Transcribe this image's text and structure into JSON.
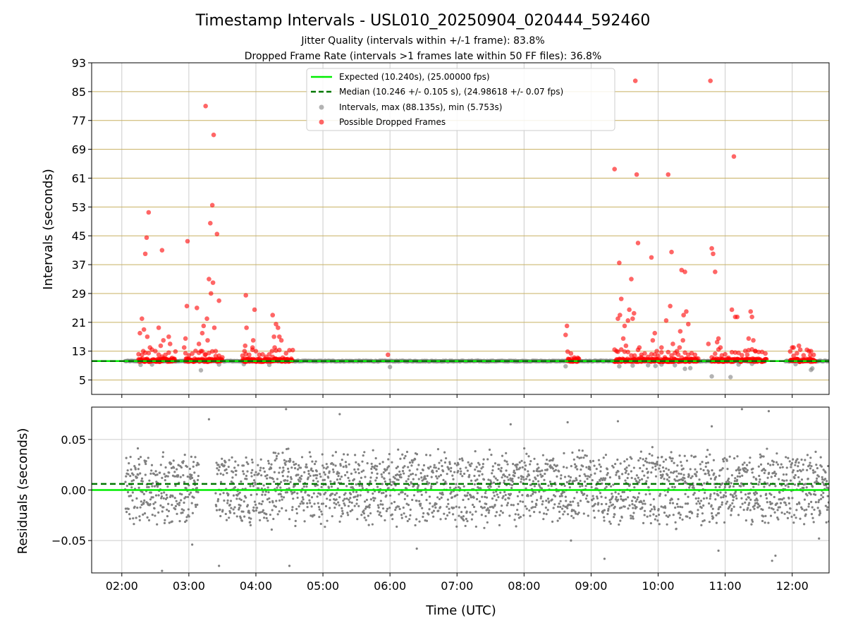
{
  "title": "Timestamp Intervals - USL010_20250904_020444_592460",
  "subtitle_lines": [
    "Jitter Quality (intervals within +/-1 frame): 83.8%",
    "Dropped Frame Rate (intervals >1 frames late within 50 FF files): 36.8%"
  ],
  "colors": {
    "expected": "#00ee00",
    "median": "#007700",
    "intervals": "#808080",
    "dropped": "#ff0000",
    "hgrid_top": "#c8b060",
    "grid": "#cccccc"
  },
  "chart_data": [
    {
      "type": "scatter",
      "panel": "intervals",
      "ylabel": "Intervals (seconds)",
      "ylim": [
        1,
        93
      ],
      "yticks": [
        "5",
        "13",
        "21",
        "29",
        "37",
        "45",
        "53",
        "61",
        "69",
        "77",
        "85",
        "93"
      ],
      "xlim_hours": [
        1.55,
        12.55
      ],
      "legend_placement": "upper-center",
      "legend": [
        "Expected (10.240s), (25.00000 fps)",
        "Median (10.246 +/- 0.105 s), (24.98618 +/- 0.07 fps)",
        "Intervals, max (88.135s), min (5.753s)",
        "Possible Dropped Frames"
      ],
      "expected_value": 10.24,
      "median_value": 10.246,
      "interval_segments_hours": [
        [
          2.05,
          4.5
        ],
        [
          4.5,
          8.8
        ],
        [
          8.8,
          11.6
        ],
        [
          11.9,
          12.55
        ]
      ],
      "gray_outliers": [
        [
          2.28,
          9.2
        ],
        [
          2.45,
          9.3
        ],
        [
          3.18,
          7.7
        ],
        [
          3.45,
          9.3
        ],
        [
          3.82,
          9.4
        ],
        [
          4.2,
          9.2
        ],
        [
          6.0,
          8.6
        ],
        [
          8.62,
          8.8
        ],
        [
          9.42,
          8.8
        ],
        [
          9.62,
          9.0
        ],
        [
          9.85,
          9.1
        ],
        [
          9.96,
          8.9
        ],
        [
          10.05,
          9.3
        ],
        [
          10.25,
          9.1
        ],
        [
          10.4,
          8.1
        ],
        [
          10.48,
          8.3
        ],
        [
          10.8,
          6.0
        ],
        [
          11.08,
          5.8
        ],
        [
          11.2,
          9.3
        ],
        [
          11.4,
          9.5
        ],
        [
          12.05,
          9.4
        ],
        [
          12.28,
          7.8
        ],
        [
          12.3,
          8.2
        ]
      ],
      "dropped_frames": [
        [
          2.3,
          22
        ],
        [
          2.33,
          19
        ],
        [
          2.27,
          18
        ],
        [
          2.35,
          40
        ],
        [
          2.37,
          44.5
        ],
        [
          2.4,
          51.5
        ],
        [
          2.42,
          14
        ],
        [
          2.38,
          17
        ],
        [
          2.32,
          13
        ],
        [
          2.55,
          19.5
        ],
        [
          2.58,
          14.5
        ],
        [
          2.6,
          41
        ],
        [
          2.62,
          16
        ],
        [
          2.7,
          17
        ],
        [
          2.72,
          15
        ],
        [
          2.98,
          43.5
        ],
        [
          2.97,
          25.5
        ],
        [
          2.95,
          16.5
        ],
        [
          2.93,
          14
        ],
        [
          3.12,
          25
        ],
        [
          3.15,
          15
        ],
        [
          3.2,
          18
        ],
        [
          3.22,
          20
        ],
        [
          3.25,
          81
        ],
        [
          3.27,
          22
        ],
        [
          3.28,
          16
        ],
        [
          3.3,
          33
        ],
        [
          3.32,
          48.5
        ],
        [
          3.33,
          29
        ],
        [
          3.35,
          53.5
        ],
        [
          3.36,
          32
        ],
        [
          3.37,
          73
        ],
        [
          3.38,
          19.5
        ],
        [
          3.4,
          13
        ],
        [
          3.42,
          45.5
        ],
        [
          3.45,
          27
        ],
        [
          3.18,
          13
        ],
        [
          3.24,
          12
        ],
        [
          3.85,
          28.5
        ],
        [
          3.86,
          19.5
        ],
        [
          3.84,
          14.5
        ],
        [
          3.83,
          13
        ],
        [
          3.98,
          24.5
        ],
        [
          3.96,
          16
        ],
        [
          3.95,
          14
        ],
        [
          4.25,
          23
        ],
        [
          4.27,
          17
        ],
        [
          4.3,
          20.5
        ],
        [
          4.33,
          19.5
        ],
        [
          4.35,
          17
        ],
        [
          4.38,
          16
        ],
        [
          4.28,
          14
        ],
        [
          4.24,
          13
        ],
        [
          5.97,
          12
        ],
        [
          8.62,
          17.5
        ],
        [
          8.64,
          20
        ],
        [
          9.35,
          63.5
        ],
        [
          9.38,
          13
        ],
        [
          9.4,
          22
        ],
        [
          9.42,
          37.5
        ],
        [
          9.45,
          27.5
        ],
        [
          9.43,
          23
        ],
        [
          9.48,
          16.5
        ],
        [
          9.5,
          20
        ],
        [
          9.52,
          14.5
        ],
        [
          9.55,
          21.5
        ],
        [
          9.57,
          24.5
        ],
        [
          9.6,
          33
        ],
        [
          9.62,
          22
        ],
        [
          9.64,
          23.5
        ],
        [
          9.66,
          88
        ],
        [
          9.68,
          62
        ],
        [
          9.7,
          43
        ],
        [
          9.72,
          14
        ],
        [
          9.75,
          12
        ],
        [
          9.9,
          39
        ],
        [
          9.92,
          16
        ],
        [
          9.95,
          18
        ],
        [
          9.98,
          13
        ],
        [
          10.05,
          14
        ],
        [
          10.12,
          21.5
        ],
        [
          10.15,
          62
        ],
        [
          10.18,
          25.5
        ],
        [
          10.2,
          40.5
        ],
        [
          10.22,
          15
        ],
        [
          10.28,
          13
        ],
        [
          10.33,
          18.5
        ],
        [
          10.35,
          35.5
        ],
        [
          10.38,
          23
        ],
        [
          10.4,
          35
        ],
        [
          10.42,
          24
        ],
        [
          10.45,
          20.5
        ],
        [
          10.37,
          16
        ],
        [
          10.32,
          14
        ],
        [
          10.75,
          15
        ],
        [
          10.78,
          88
        ],
        [
          10.8,
          41.5
        ],
        [
          10.82,
          40
        ],
        [
          10.85,
          35
        ],
        [
          10.88,
          15.5
        ],
        [
          10.9,
          16.5
        ],
        [
          10.93,
          14
        ],
        [
          11.1,
          24.5
        ],
        [
          11.13,
          67
        ],
        [
          11.15,
          22.5
        ],
        [
          11.18,
          22.5
        ],
        [
          11.35,
          16.5
        ],
        [
          11.38,
          24
        ],
        [
          11.4,
          22.5
        ],
        [
          11.42,
          16
        ],
        [
          11.45,
          13
        ],
        [
          11.33,
          12
        ],
        [
          12.0,
          14
        ],
        [
          12.02,
          14
        ],
        [
          12.1,
          14.5
        ],
        [
          12.25,
          13
        ],
        [
          12.28,
          13
        ]
      ],
      "dropped_bands_hours": [
        [
          2.25,
          2.8
        ],
        [
          2.95,
          3.5
        ],
        [
          3.8,
          4.55
        ],
        [
          8.65,
          8.82
        ],
        [
          9.35,
          10.6
        ],
        [
          10.8,
          11.62
        ],
        [
          11.97,
          12.35
        ]
      ]
    },
    {
      "type": "scatter",
      "panel": "residuals",
      "ylabel": "Residuals (seconds)",
      "xlabel": "Time (UTC)",
      "ylim": [
        -0.082,
        0.082
      ],
      "yticks": [
        {
          "label": "0.05",
          "value": 0.05
        },
        {
          "label": "0.00",
          "value": 0.0
        },
        {
          "label": "−0.05",
          "value": -0.05
        }
      ],
      "xlim_hours": [
        1.55,
        12.55
      ],
      "xticks": [
        {
          "label": "02:00",
          "value": 2
        },
        {
          "label": "03:00",
          "value": 3
        },
        {
          "label": "04:00",
          "value": 4
        },
        {
          "label": "05:00",
          "value": 5
        },
        {
          "label": "06:00",
          "value": 6
        },
        {
          "label": "07:00",
          "value": 7
        },
        {
          "label": "08:00",
          "value": 8
        },
        {
          "label": "09:00",
          "value": 9
        },
        {
          "label": "10:00",
          "value": 10
        },
        {
          "label": "11:00",
          "value": 11
        },
        {
          "label": "12:00",
          "value": 12
        }
      ],
      "expected_value": 0.0,
      "median_value": 0.006,
      "residual_clusters": [
        0.021,
        0.001,
        -0.019
      ],
      "residual_segments_hours": [
        [
          2.05,
          3.15
        ],
        [
          3.4,
          12.55
        ]
      ],
      "residual_outliers": [
        [
          3.05,
          -0.054
        ],
        [
          3.45,
          -0.075
        ],
        [
          4.5,
          -0.075
        ],
        [
          2.6,
          -0.08
        ],
        [
          3.3,
          0.07
        ],
        [
          4.45,
          0.08
        ],
        [
          5.25,
          0.075
        ],
        [
          6.4,
          -0.058
        ],
        [
          8.65,
          0.067
        ],
        [
          8.7,
          -0.05
        ],
        [
          9.2,
          -0.068
        ],
        [
          9.4,
          0.068
        ],
        [
          10.8,
          0.063
        ],
        [
          11.25,
          0.08
        ],
        [
          11.65,
          0.078
        ],
        [
          11.7,
          -0.07
        ],
        [
          11.75,
          -0.065
        ],
        [
          12.4,
          -0.048
        ],
        [
          7.8,
          0.065
        ],
        [
          10.9,
          -0.06
        ]
      ]
    }
  ]
}
